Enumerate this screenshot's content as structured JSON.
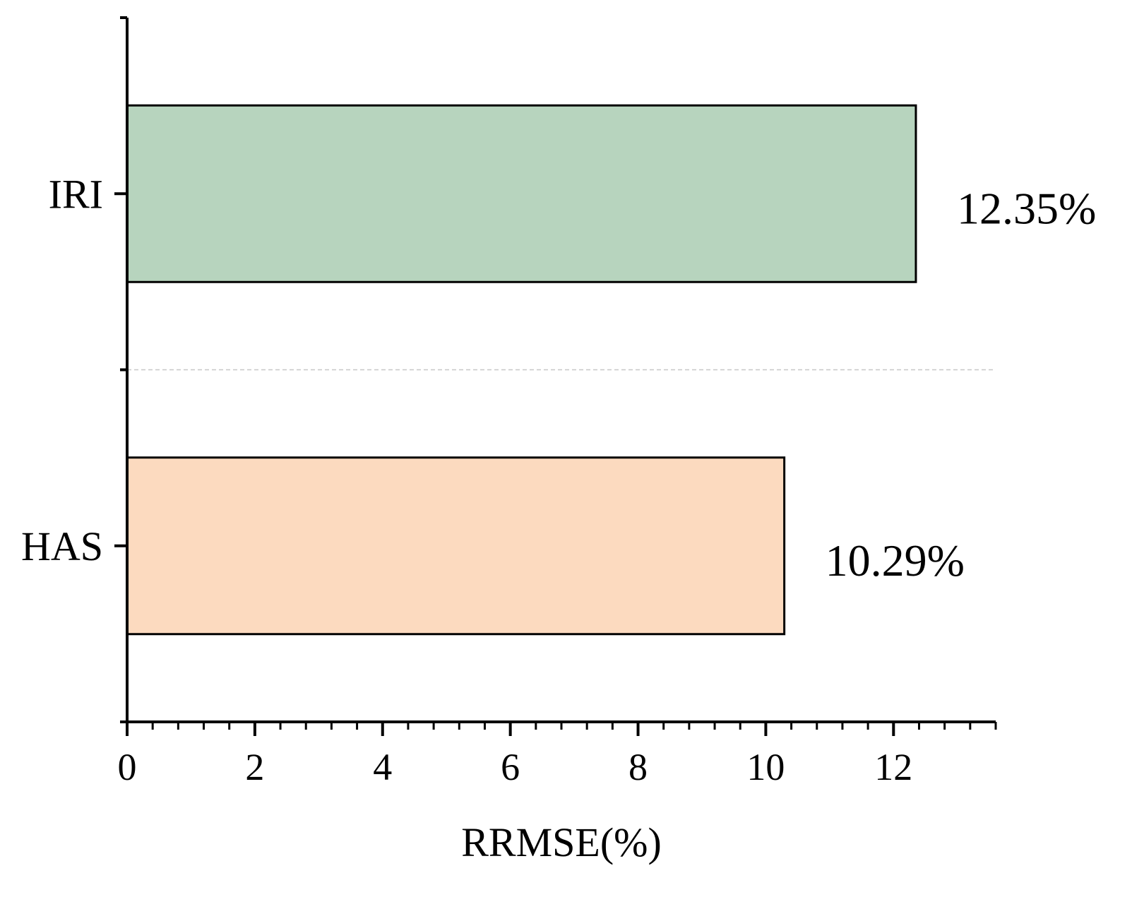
{
  "chart_data": {
    "type": "bar",
    "orientation": "horizontal",
    "categories": [
      "IRI",
      "HAS"
    ],
    "values": [
      12.35,
      10.29
    ],
    "data_labels": [
      "12.35%",
      "10.29%"
    ],
    "colors": [
      "#b7d4be",
      "#fcdabf"
    ],
    "title": "",
    "xlabel": "RRMSE(%)",
    "ylabel": "",
    "xlim": [
      0,
      13.6
    ],
    "xticks": [
      0,
      2,
      4,
      6,
      8,
      10,
      12
    ],
    "xtick_labels": [
      "0",
      "2",
      "4",
      "6",
      "8",
      "10",
      "12"
    ],
    "minor_tick_step": 0.4,
    "grid": "dashed separator between categories"
  }
}
